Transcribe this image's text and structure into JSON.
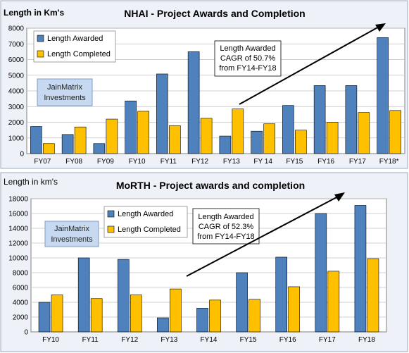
{
  "colors": {
    "awarded": "#4f81bd",
    "completed": "#ffc000",
    "panel_bg": "#eef2f8",
    "plot_bg": "#ffffff",
    "grid": "#c0c0c0",
    "watermark_bg": "#c6d9f1"
  },
  "chart_data": [
    {
      "type": "bar",
      "title": "NHAI - Project  Awards and Completion",
      "unit_label": "Length in Km's",
      "categories": [
        "FY07",
        "FY08",
        "FY09",
        "FY10",
        "FY11",
        "FY12",
        "FY13",
        "FY 14",
        "FY15",
        "FY16",
        "FY17",
        "FY18*"
      ],
      "series": [
        {
          "name": "Length Awarded",
          "values": [
            1730,
            1220,
            640,
            3360,
            5080,
            6500,
            1120,
            1430,
            3070,
            4340,
            4340,
            7400
          ]
        },
        {
          "name": "Length Completed",
          "values": [
            640,
            1700,
            2200,
            2700,
            1780,
            2250,
            2850,
            1900,
            1500,
            2000,
            2620,
            2750
          ]
        }
      ],
      "ylim": [
        0,
        8000
      ],
      "yticks": [
        "0",
        "1000",
        "2000",
        "3000",
        "4000",
        "5000",
        "6000",
        "7000",
        "8000"
      ],
      "grid": true,
      "legend": "top-left",
      "annotation": [
        "Length Awarded",
        "CAGR of 50.7%",
        "from FY14-FY18"
      ],
      "watermark": [
        "JainMatrix",
        "Investments"
      ]
    },
    {
      "type": "bar",
      "title": "MoRTH - Project  awards and completion",
      "unit_label": "Length in km's",
      "categories": [
        "FY10",
        "FY11",
        "FY12",
        "FY13",
        "FY14",
        "FY15",
        "FY16",
        "FY17",
        "FY18"
      ],
      "series": [
        {
          "name": "Length Awarded",
          "values": [
            4000,
            10000,
            9800,
            1900,
            3200,
            8000,
            10100,
            16000,
            17100
          ]
        },
        {
          "name": "Length Completed",
          "values": [
            5000,
            4500,
            5000,
            5800,
            4300,
            4400,
            6100,
            8200,
            9900
          ]
        }
      ],
      "ylim": [
        0,
        18000
      ],
      "yticks": [
        "0",
        "2000",
        "4000",
        "6000",
        "8000",
        "10000",
        "12000",
        "14000",
        "16000",
        "18000"
      ],
      "grid": true,
      "legend": "top-center",
      "annotation": [
        "Length Awarded",
        "CAGR of 52.3%",
        "from FY14-FY18"
      ],
      "watermark": [
        "JainMatrix",
        "Investments"
      ]
    }
  ]
}
